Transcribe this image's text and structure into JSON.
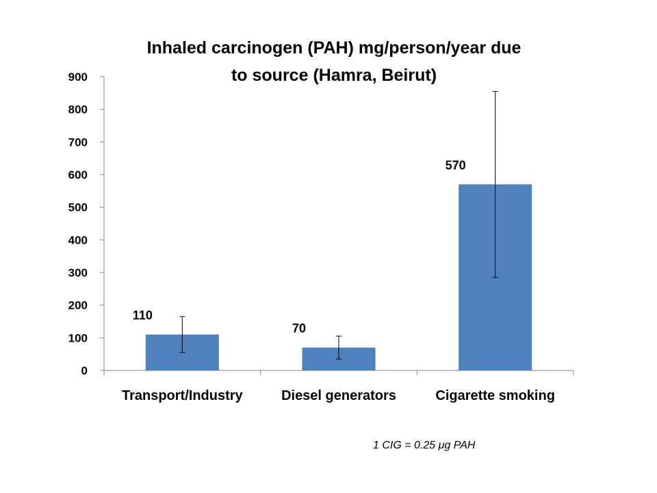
{
  "chart_data": {
    "type": "bar",
    "title_lines": [
      "Inhaled carcinogen (PAH) mg/person/year due",
      "to source (Hamra, Beirut)"
    ],
    "categories": [
      "Transport/Industry",
      "Diesel generators",
      "Cigarette smoking"
    ],
    "values": [
      110,
      70,
      570
    ],
    "data_labels": [
      "110",
      "70",
      "570"
    ],
    "error_bars": [
      {
        "low": 55,
        "high": 165
      },
      {
        "low": 35,
        "high": 105
      },
      {
        "low": 285,
        "high": 855
      }
    ],
    "ylim": [
      0,
      900
    ],
    "yticks": [
      0,
      100,
      200,
      300,
      400,
      500,
      600,
      700,
      800,
      900
    ],
    "ytick_labels": [
      "0",
      "100",
      "200",
      "300",
      "400",
      "500",
      "600",
      "700",
      "800",
      "900"
    ],
    "bar_color": "#4F81BD",
    "grid": false,
    "legend": "none"
  },
  "footnote": {
    "prefix": "1 CIG = 0.25 ",
    "mu": "μ",
    "suffix": "g PAH"
  }
}
